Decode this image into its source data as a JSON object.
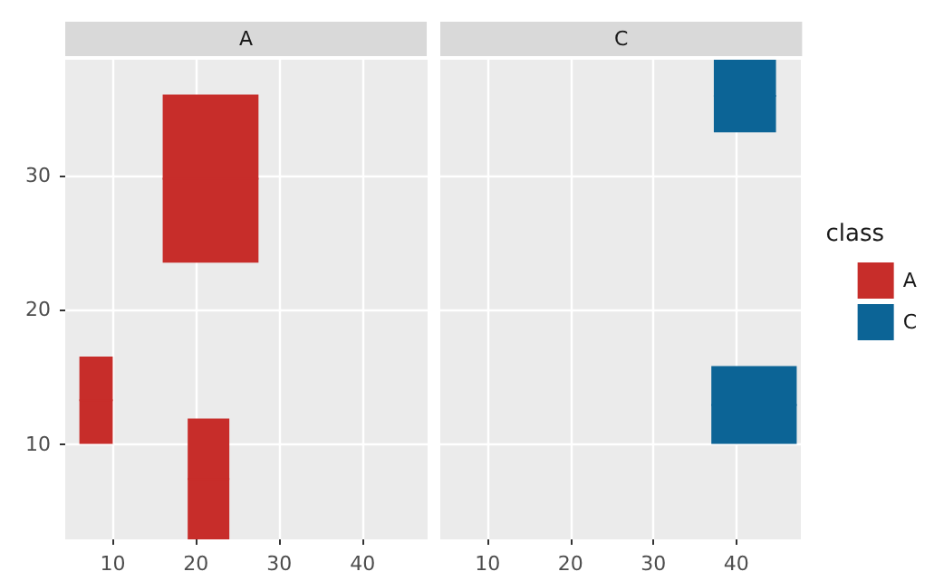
{
  "chart_data": [
    {
      "type": "bar",
      "title": "A",
      "xlim": [
        4.3,
        47.8
      ],
      "ylim": [
        2.9,
        38.6
      ],
      "xticks": [
        10,
        20,
        30,
        40
      ],
      "yticks": [
        10,
        20,
        30
      ],
      "grid": true,
      "legend": false,
      "series": [
        {
          "color": "#c72d2a",
          "x": [
            8,
            21.5,
            21.75
          ],
          "xerrors": [
            2,
            2.5,
            5.75
          ],
          "base": [
            10,
            2.9,
            23.5
          ],
          "values": [
            6.5,
            9,
            12.5
          ]
        }
      ]
    },
    {
      "type": "bar",
      "title": "C",
      "xlim": [
        4.3,
        47.8
      ],
      "ylim": [
        2.9,
        38.6
      ],
      "xticks": [
        10,
        20,
        30,
        40
      ],
      "yticks": [
        10,
        20,
        30
      ],
      "grid": true,
      "legend": "right",
      "legend_title": "class",
      "tick_labels": "x",
      "series": [
        {
          "name": "A",
          "color": "#c72d2a"
        },
        {
          "name": "C",
          "color": "#0c6496",
          "x": [
            41.05,
            42.15
          ],
          "xerrors": [
            3.75,
            5.15
          ],
          "base": [
            33.2,
            10
          ],
          "values": [
            5.4,
            5.8
          ]
        }
      ]
    }
  ]
}
